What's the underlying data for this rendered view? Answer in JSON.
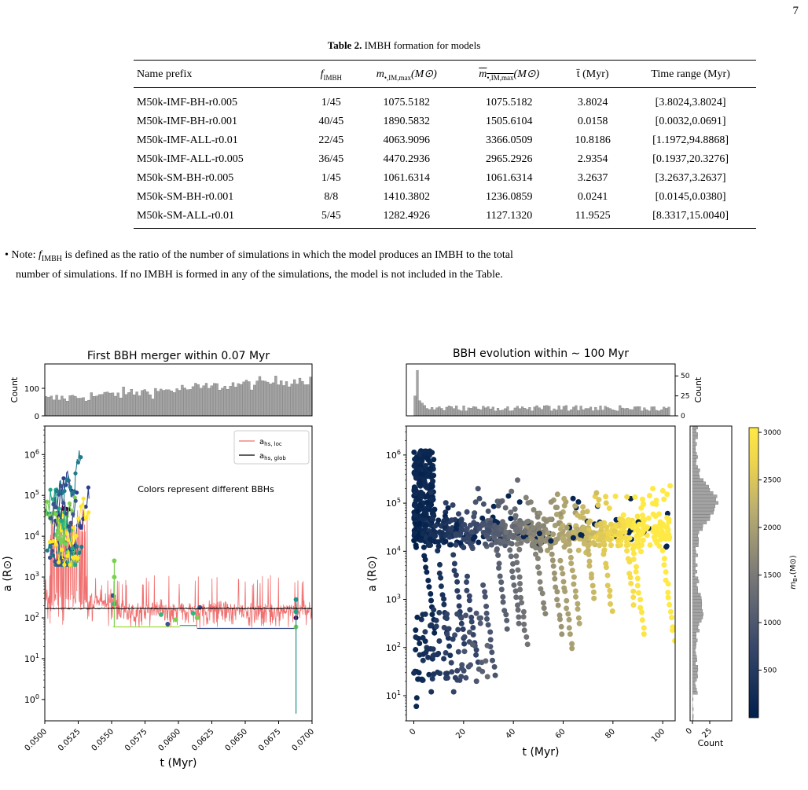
{
  "page_number": "7",
  "table": {
    "caption_label": "Table 2.",
    "caption_text": "IMBH formation for models",
    "headers": [
      "Name prefix",
      "f_IMBH",
      "m•,IM,max(M⊙)",
      "m•,IM,max(M⊙) (overlined)",
      "t̄ (Myr)",
      "Time range (Myr)"
    ],
    "header_display": {
      "name": "Name prefix",
      "f": "f",
      "f_sub": "IMBH",
      "m": "m",
      "m_sub": "•,IM,max",
      "m_unit": "(M⊙)",
      "mbar": "m",
      "mbar_sub": "•,IM,max",
      "mbar_unit": "(M⊙)",
      "t": "t̄ (Myr)",
      "range": "Time range (Myr)"
    },
    "rows": [
      [
        "M50k-IMF-BH-r0.005",
        "1/45",
        "1075.5182",
        "1075.5182",
        "3.8024",
        "[3.8024,3.8024]"
      ],
      [
        "M50k-IMF-BH-r0.001",
        "40/45",
        "1890.5832",
        "1505.6104",
        "0.0158",
        "[0.0032,0.0691]"
      ],
      [
        "M50k-IMF-ALL-r0.01",
        "22/45",
        "4063.9096",
        "3366.0509",
        "10.8186",
        "[1.1972,94.8868]"
      ],
      [
        "M50k-IMF-ALL-r0.005",
        "36/45",
        "4470.2936",
        "2965.2926",
        "2.9354",
        "[0.1937,20.3276]"
      ],
      [
        "M50k-SM-BH-r0.005",
        "1/45",
        "1061.6314",
        "1061.6314",
        "3.2637",
        "[3.2637,3.2637]"
      ],
      [
        "M50k-SM-BH-r0.001",
        "8/8",
        "1410.3802",
        "1236.0859",
        "0.0241",
        "[0.0145,0.0380]"
      ],
      [
        "M50k-SM-ALL-r0.01",
        "5/45",
        "1282.4926",
        "1127.1320",
        "11.9525",
        "[8.3317,15.0040]"
      ]
    ]
  },
  "note": {
    "bullet": "•",
    "prefix": "Note: ",
    "symbol": "f",
    "symbol_sub": "IMBH",
    "line1": " is defined as the ratio of the number of simulations in which the model produces an IMBH to the total",
    "line2": "number of simulations. If no IMBH is formed in any of the simulations, the model is not included in the Table."
  },
  "chart_data": [
    {
      "type": "line",
      "title": "First BBH merger within 0.07 Myr",
      "xlabel": "t (Myr)",
      "ylabel": "a (R⊙)",
      "y_scale": "log",
      "xlim": [
        0.05,
        0.07
      ],
      "ylim": [
        0.3,
        5000000
      ],
      "x_ticks": [
        "0.0500",
        "0.0525",
        "0.0550",
        "0.0575",
        "0.0600",
        "0.0625",
        "0.0650",
        "0.0675",
        "0.0700"
      ],
      "y_ticks": [
        "10^0",
        "10^1",
        "10^2",
        "10^3",
        "10^4",
        "10^5",
        "10^6"
      ],
      "annotation": "Colors represent different BBHs",
      "legend_position": "top-right",
      "series": [
        {
          "name": "a_hs,loc",
          "legend": "a",
          "legend_sub": "hs, loc",
          "color": "#f07070",
          "typical_range": [
            60,
            500
          ]
        },
        {
          "name": "a_hs,glob",
          "legend": "a",
          "legend_sub": "hs, glob",
          "color": "#000000",
          "value": 170
        }
      ],
      "histogram": {
        "ylabel": "Count",
        "y_ticks": [
          "0",
          "100"
        ],
        "ylim": [
          0,
          190
        ],
        "approx_range": [
          40,
          180
        ]
      }
    },
    {
      "type": "scatter",
      "title": "BBH evolution within  ∼  100 Myr",
      "xlabel": "t (Myr)",
      "ylabel": "a (R⊙)",
      "y_scale": "log",
      "xlim": [
        -3,
        105
      ],
      "ylim": [
        3,
        4000000
      ],
      "x_ticks": [
        "0",
        "20",
        "40",
        "60",
        "80",
        "100"
      ],
      "y_ticks": [
        "10^1",
        "10^2",
        "10^3",
        "10^4",
        "10^5",
        "10^6"
      ],
      "top_histogram": {
        "ylabel": "Count",
        "y_ticks": [
          "0",
          "25",
          "50"
        ],
        "ylim": [
          0,
          65
        ],
        "peak": 57
      },
      "right_histogram": {
        "xlabel": "Count",
        "x_ticks": [
          "0",
          "25"
        ]
      },
      "colorbar": {
        "label": "m",
        "label_sub": "B•",
        "label_unit": "(M⊙)",
        "ticks": [
          "500",
          "1000",
          "1500",
          "2000",
          "2500",
          "3000"
        ],
        "range": [
          0,
          3050
        ],
        "cmap": [
          "#00204c",
          "#575d6d",
          "#a59c74",
          "#f0d445",
          "#ffe945"
        ]
      }
    }
  ]
}
